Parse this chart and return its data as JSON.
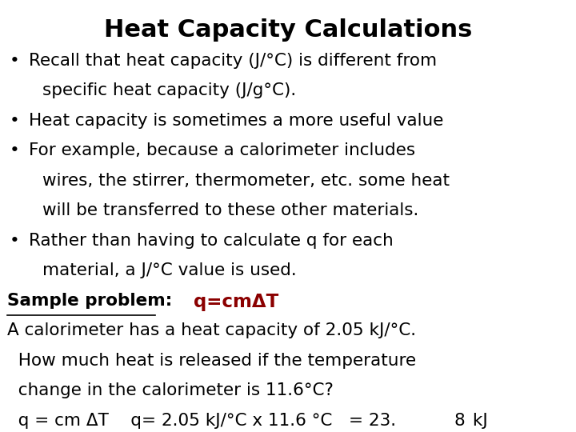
{
  "title": "Heat Capacity Calculations",
  "title_fontsize": 22,
  "body_fontsize": 15.5,
  "background_color": "#ffffff",
  "text_color": "#000000",
  "maroon_color": "#8B0000",
  "bullet1_line1": "Recall that heat capacity (J/°C) is different from",
  "bullet1_line2": "specific heat capacity (J/g°C).",
  "bullet2": "Heat capacity is sometimes a more useful value",
  "bullet3_line1": "For example, because a calorimeter includes",
  "bullet3_line2": "wires, the stirrer, thermometer, etc. some heat",
  "bullet3_line3": "will be transferred to these other materials.",
  "bullet4_line1": "Rather than having to calculate q for each",
  "bullet4_line2": "material, a J/°C value is used.",
  "sample_label": "Sample problem:",
  "sample_formula": "q=cmΔT",
  "problem_line1": "A calorimeter has a heat capacity of 2.05 kJ/°C.",
  "problem_line2": "  How much heat is released if the temperature",
  "problem_line3": "  change in the calorimeter is 11.6°C?",
  "answer_part1": "  q = cm ΔT    q= 2.05 kJ/°C x 11.6 °C   = 23.",
  "answer_part2": "8",
  "answer_part3": " kJ"
}
